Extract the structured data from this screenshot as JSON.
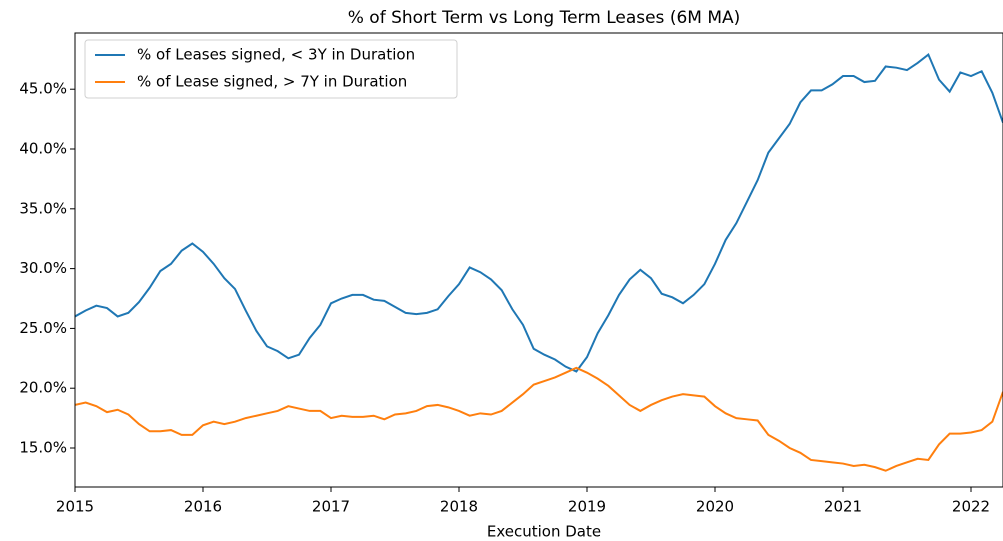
{
  "chart_data": {
    "type": "line",
    "title": "% of Short Term vs Long Term Leases (6M MA)",
    "x_label": "Execution Date",
    "x": [
      2015,
      2015.0833,
      2015.1667,
      2015.25,
      2015.3333,
      2015.4167,
      2015.5,
      2015.5833,
      2015.6667,
      2015.75,
      2015.8333,
      2015.9167,
      2016,
      2016.0833,
      2016.1667,
      2016.25,
      2016.3333,
      2016.4167,
      2016.5,
      2016.5833,
      2016.6667,
      2016.75,
      2016.8333,
      2016.9167,
      2017,
      2017.0833,
      2017.1667,
      2017.25,
      2017.3333,
      2017.4167,
      2017.5,
      2017.5833,
      2017.6667,
      2017.75,
      2017.8333,
      2017.9167,
      2018,
      2018.0833,
      2018.1667,
      2018.25,
      2018.3333,
      2018.4167,
      2018.5,
      2018.5833,
      2018.6667,
      2018.75,
      2018.8333,
      2018.9167,
      2019,
      2019.0833,
      2019.1667,
      2019.25,
      2019.3333,
      2019.4167,
      2019.5,
      2019.5833,
      2019.6667,
      2019.75,
      2019.8333,
      2019.9167,
      2020,
      2020.0833,
      2020.1667,
      2020.25,
      2020.3333,
      2020.4167,
      2020.5,
      2020.5833,
      2020.6667,
      2020.75,
      2020.8333,
      2020.9167,
      2021,
      2021.0833,
      2021.1667,
      2021.25,
      2021.3333,
      2021.4167,
      2021.5,
      2021.5833,
      2021.6667,
      2021.75,
      2021.8333,
      2021.9167,
      2022,
      2022.0833,
      2022.1667,
      2022.25
    ],
    "series": [
      {
        "name": "% of Leases signed, < 3Y in Duration",
        "color": "#1f77b4",
        "values": [
          26.0,
          26.5,
          26.9,
          26.7,
          26.0,
          26.3,
          27.2,
          28.4,
          29.8,
          30.4,
          31.5,
          32.1,
          31.4,
          30.4,
          29.2,
          28.3,
          26.5,
          24.8,
          23.5,
          23.1,
          22.5,
          22.8,
          24.2,
          25.3,
          27.1,
          27.5,
          27.8,
          27.8,
          27.4,
          27.3,
          26.8,
          26.3,
          26.2,
          26.3,
          26.6,
          27.7,
          28.7,
          30.1,
          29.7,
          29.1,
          28.2,
          26.6,
          25.3,
          23.3,
          22.8,
          22.4,
          21.8,
          21.4,
          22.6,
          24.6,
          26.1,
          27.8,
          29.1,
          29.9,
          29.2,
          27.9,
          27.6,
          27.1,
          27.8,
          28.7,
          30.4,
          32.4,
          33.8,
          35.6,
          37.4,
          39.7,
          40.9,
          42.1,
          43.9,
          44.9,
          44.9,
          45.4,
          46.1,
          46.1,
          45.6,
          45.7,
          46.9,
          46.8,
          46.6,
          47.2,
          47.9,
          45.8,
          44.8,
          46.4,
          46.1,
          46.5,
          44.7,
          42.2
        ]
      },
      {
        "name": "% of Lease signed, > 7Y in Duration",
        "color": "#ff7f0e",
        "values": [
          18.6,
          18.8,
          18.5,
          18.0,
          18.2,
          17.8,
          17.0,
          16.4,
          16.4,
          16.5,
          16.1,
          16.1,
          16.9,
          17.2,
          17.0,
          17.2,
          17.5,
          17.7,
          17.9,
          18.1,
          18.5,
          18.3,
          18.1,
          18.1,
          17.5,
          17.7,
          17.6,
          17.6,
          17.7,
          17.4,
          17.8,
          17.9,
          18.1,
          18.5,
          18.6,
          18.4,
          18.1,
          17.7,
          17.9,
          17.8,
          18.1,
          18.8,
          19.5,
          20.3,
          20.6,
          20.9,
          21.3,
          21.7,
          21.3,
          20.8,
          20.2,
          19.4,
          18.6,
          18.1,
          18.6,
          19.0,
          19.3,
          19.5,
          19.4,
          19.3,
          18.5,
          17.9,
          17.5,
          17.4,
          17.3,
          16.1,
          15.6,
          15.0,
          14.6,
          14.0,
          13.9,
          13.8,
          13.7,
          13.5,
          13.6,
          13.4,
          13.1,
          13.5,
          13.8,
          14.1,
          14.0,
          15.3,
          16.2,
          16.2,
          16.3,
          16.5,
          17.2,
          19.7
        ]
      }
    ],
    "xlim": [
      2015,
      2022.25
    ],
    "xticks": [
      2015,
      2016,
      2017,
      2018,
      2019,
      2020,
      2021,
      2022
    ],
    "ylim": [
      11.74,
      49.7
    ],
    "yticks": [
      {
        "value": 15,
        "label": "15.0%"
      },
      {
        "value": 20,
        "label": "20.0%"
      },
      {
        "value": 25,
        "label": "25.0%"
      },
      {
        "value": 30,
        "label": "30.0%"
      },
      {
        "value": 35,
        "label": "35.0%"
      },
      {
        "value": 40,
        "label": "40.0%"
      },
      {
        "value": 45,
        "label": "45.0%"
      }
    ],
    "legend": "upper left",
    "grid": false
  }
}
